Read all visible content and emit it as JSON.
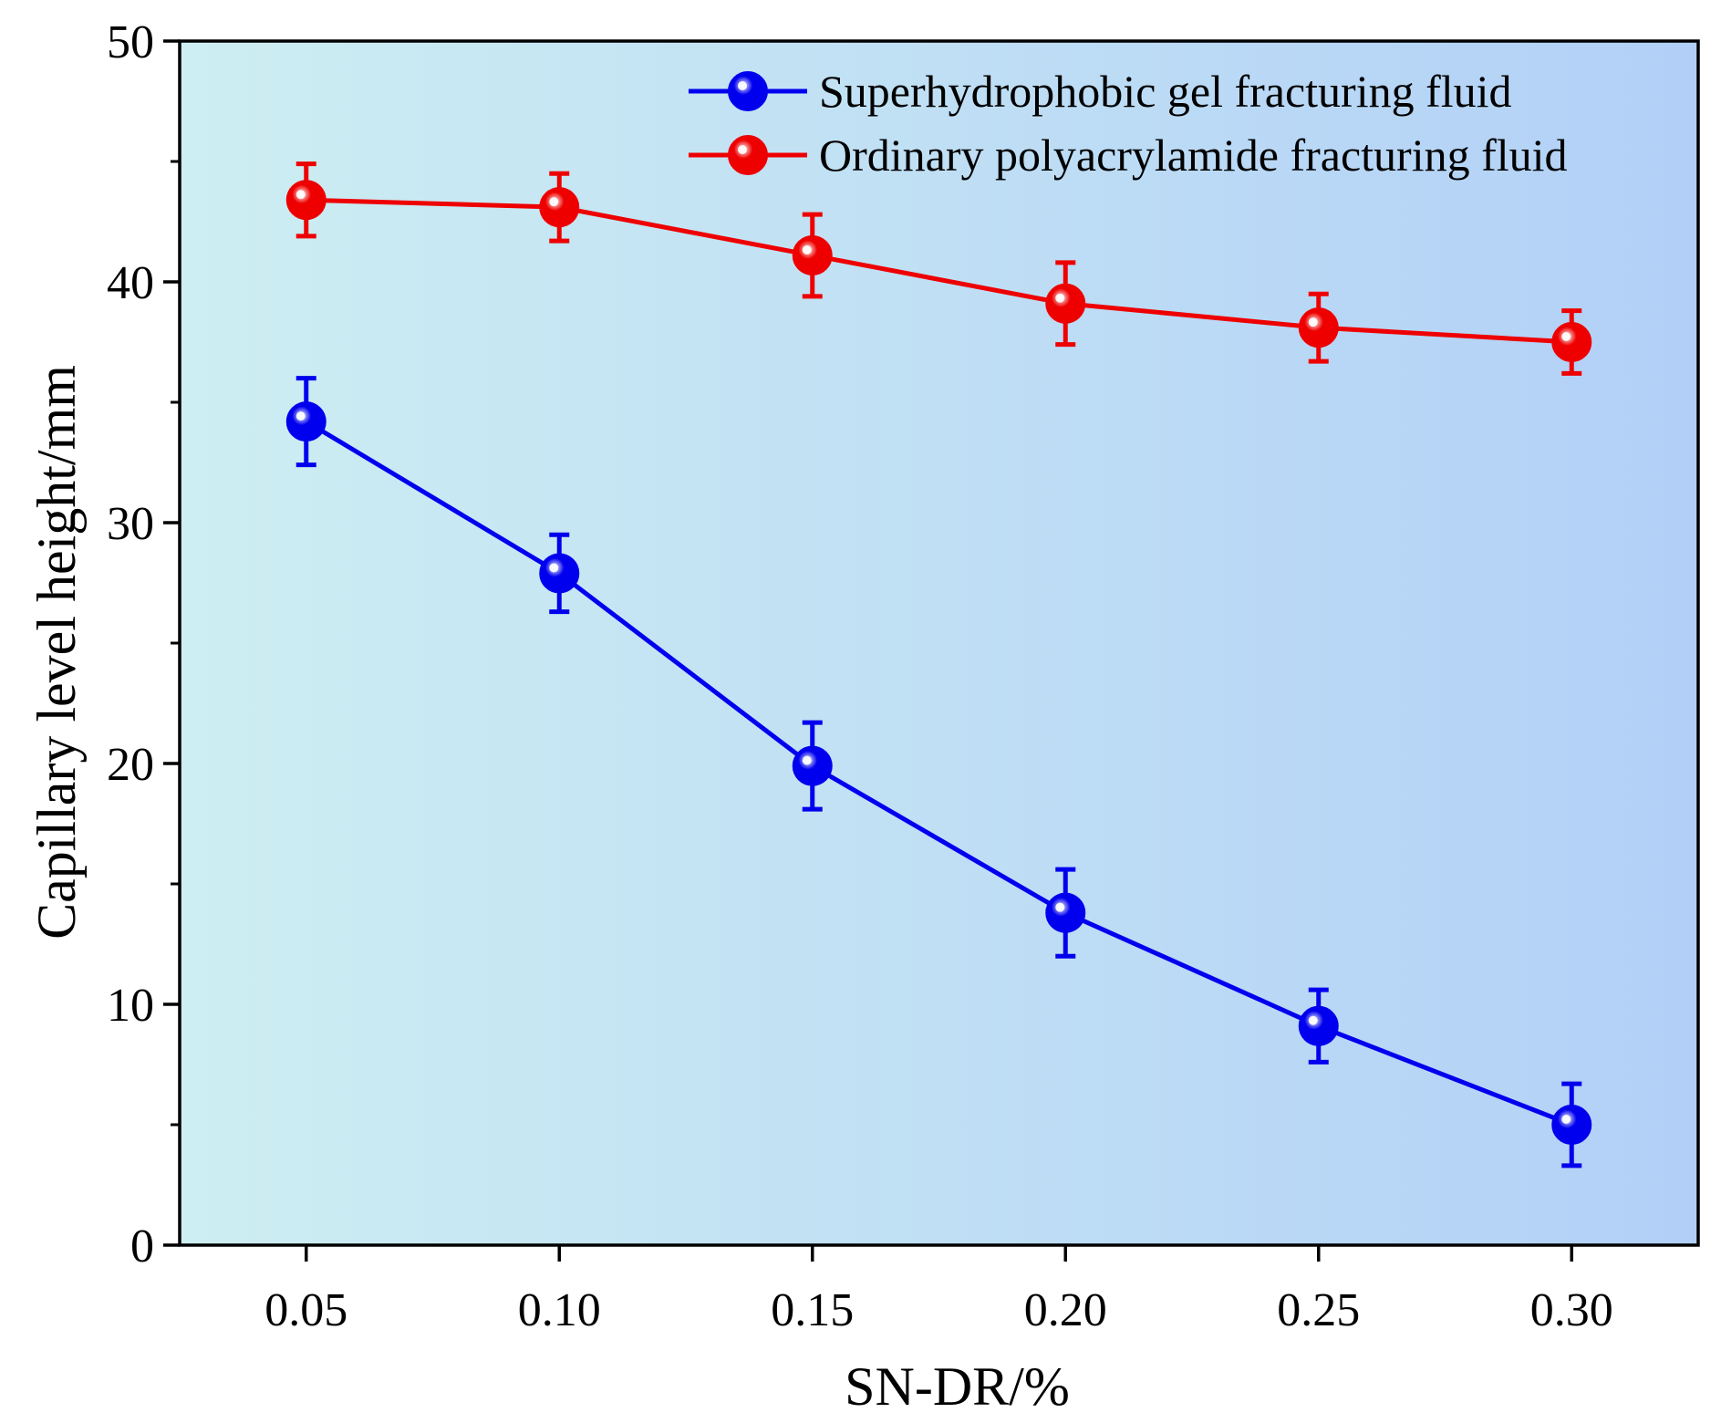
{
  "chart_data": {
    "type": "line",
    "title": "",
    "xlabel": "SN-DR/%",
    "ylabel": "Capillary level height/mm",
    "categories": [
      "0.05",
      "0.10",
      "0.15",
      "0.20",
      "0.25",
      "0.30"
    ],
    "x": [
      0.05,
      0.1,
      0.15,
      0.2,
      0.25,
      0.3
    ],
    "xlim": [
      0.025,
      0.325
    ],
    "ylim": [
      0,
      50
    ],
    "yticks": [
      "0",
      "10",
      "20",
      "30",
      "40",
      "50"
    ],
    "ytick_values": [
      0,
      10,
      20,
      30,
      40,
      50
    ],
    "grid": false,
    "legend_position": "top-right",
    "series": [
      {
        "name": "Superhydrophobic gel fracturing fluid",
        "color": "#0000ee",
        "values": [
          34.2,
          27.9,
          19.9,
          13.8,
          9.1,
          5.0
        ],
        "errors": [
          1.8,
          1.6,
          1.8,
          1.8,
          1.5,
          1.7
        ]
      },
      {
        "name": "Ordinary polyacrylamide fracturing fluid",
        "color": "#ee0000",
        "values": [
          43.4,
          43.1,
          41.1,
          39.1,
          38.1,
          37.5
        ],
        "errors": [
          1.5,
          1.4,
          1.7,
          1.7,
          1.4,
          1.3
        ]
      }
    ],
    "background_gradient": [
      "#cdeef2",
      "#b2d0f7"
    ]
  }
}
